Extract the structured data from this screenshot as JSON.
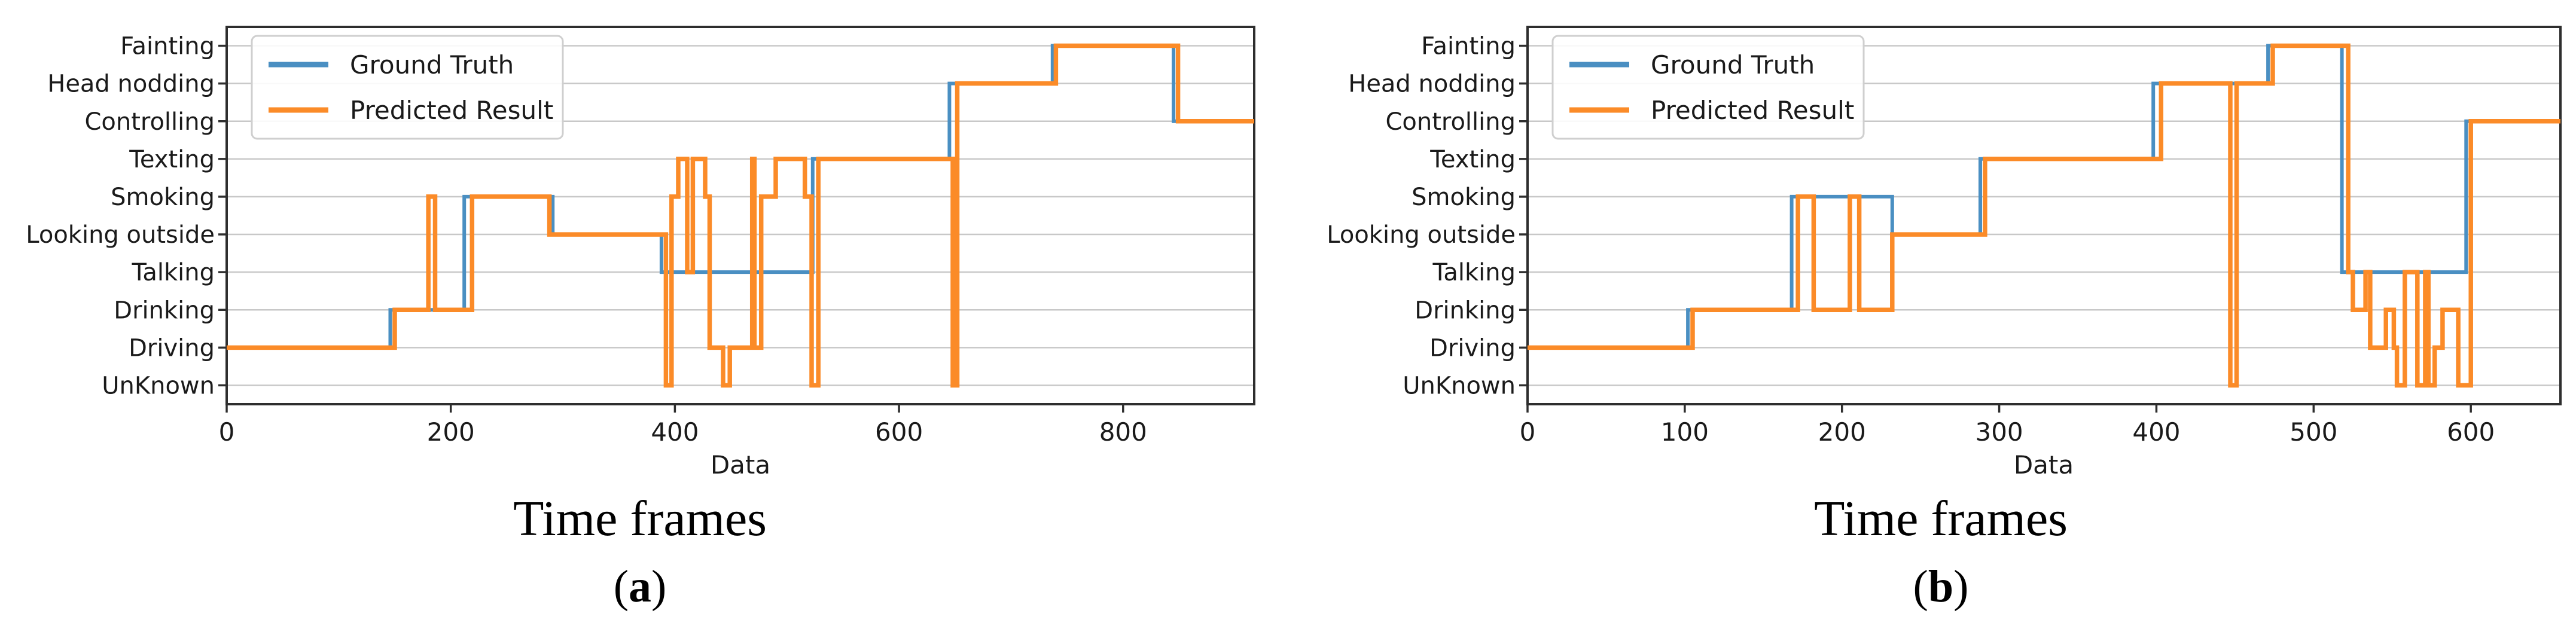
{
  "figure": {
    "caption_a": "Time frames",
    "caption_b": "Time frames",
    "sublabel_a": "(a)",
    "sublabel_b": "(b)"
  },
  "colors": {
    "ground_truth": "#4a8fc2",
    "predicted": "#fb8b28",
    "grid": "#c8c8c8",
    "spine": "#2e2e2e",
    "legend_border": "#cfcfcf"
  },
  "chart_data": [
    {
      "type": "line",
      "subtype": "step",
      "xlabel": "Data",
      "caption": "Time frames",
      "sublabel": "(a)",
      "legend": [
        "Ground Truth",
        "Predicted Result"
      ],
      "legend_position": "upper left",
      "grid": "horizontal-only",
      "categories": [
        "UnKnown",
        "Driving",
        "Drinking",
        "Talking",
        "Looking outside",
        "Smoking",
        "Texting",
        "Controlling",
        "Head nodding",
        "Fainting"
      ],
      "values_are": "index into categories (0 = UnKnown ... 9 = Fainting)",
      "x_ticks": [
        0,
        200,
        400,
        600,
        800
      ],
      "xlim": [
        0,
        917
      ],
      "series": [
        {
          "name": "Ground Truth",
          "color_key": "ground_truth",
          "steps": [
            [
              0,
              1
            ],
            [
              146,
              2
            ],
            [
              212,
              5
            ],
            [
              291,
              4
            ],
            [
              388,
              3
            ],
            [
              523,
              6
            ],
            [
              645,
              8
            ],
            [
              737,
              9
            ],
            [
              845,
              7
            ]
          ]
        },
        {
          "name": "Predicted Result",
          "color_key": "predicted",
          "steps": [
            [
              0,
              1
            ],
            [
              150,
              2
            ],
            [
              180,
              5
            ],
            [
              186,
              2
            ],
            [
              219,
              5
            ],
            [
              288,
              4
            ],
            [
              392,
              0
            ],
            [
              397,
              5
            ],
            [
              403,
              6
            ],
            [
              411,
              3
            ],
            [
              416,
              6
            ],
            [
              427,
              5
            ],
            [
              431,
              1
            ],
            [
              443,
              0
            ],
            [
              449,
              1
            ],
            [
              469,
              6
            ],
            [
              471,
              1
            ],
            [
              477,
              5
            ],
            [
              490,
              6
            ],
            [
              516,
              5
            ],
            [
              522,
              0
            ],
            [
              528,
              6
            ],
            [
              648,
              0
            ],
            [
              652,
              8
            ],
            [
              740,
              9
            ],
            [
              849,
              7
            ]
          ]
        }
      ]
    },
    {
      "type": "line",
      "subtype": "step",
      "xlabel": "Data",
      "caption": "Time frames",
      "sublabel": "(b)",
      "legend": [
        "Ground Truth",
        "Predicted Result"
      ],
      "legend_position": "upper left",
      "grid": "horizontal-only",
      "categories": [
        "UnKnown",
        "Driving",
        "Drinking",
        "Talking",
        "Looking outside",
        "Smoking",
        "Texting",
        "Controlling",
        "Head nodding",
        "Fainting"
      ],
      "values_are": "index into categories (0 = UnKnown ... 9 = Fainting)",
      "x_ticks": [
        0,
        100,
        200,
        300,
        400,
        500,
        600
      ],
      "xlim": [
        0,
        657
      ],
      "series": [
        {
          "name": "Ground Truth",
          "color_key": "ground_truth",
          "steps": [
            [
              0,
              1
            ],
            [
              102,
              2
            ],
            [
              168,
              5
            ],
            [
              232,
              4
            ],
            [
              288,
              6
            ],
            [
              398,
              8
            ],
            [
              471,
              9
            ],
            [
              518,
              3
            ],
            [
              597,
              7
            ]
          ]
        },
        {
          "name": "Predicted Result",
          "color_key": "predicted",
          "steps": [
            [
              0,
              1
            ],
            [
              105,
              2
            ],
            [
              172,
              5
            ],
            [
              182,
              2
            ],
            [
              205,
              5
            ],
            [
              211,
              2
            ],
            [
              232,
              4
            ],
            [
              291,
              6
            ],
            [
              403,
              8
            ],
            [
              447,
              0
            ],
            [
              451,
              8
            ],
            [
              474,
              9
            ],
            [
              522,
              3
            ],
            [
              525,
              2
            ],
            [
              533,
              3
            ],
            [
              536,
              1
            ],
            [
              546,
              2
            ],
            [
              551,
              1
            ],
            [
              553,
              0
            ],
            [
              558,
              3
            ],
            [
              566,
              0
            ],
            [
              571,
              3
            ],
            [
              573,
              0
            ],
            [
              577,
              1
            ],
            [
              582,
              2
            ],
            [
              592,
              0
            ],
            [
              600,
              7
            ]
          ]
        }
      ]
    }
  ]
}
